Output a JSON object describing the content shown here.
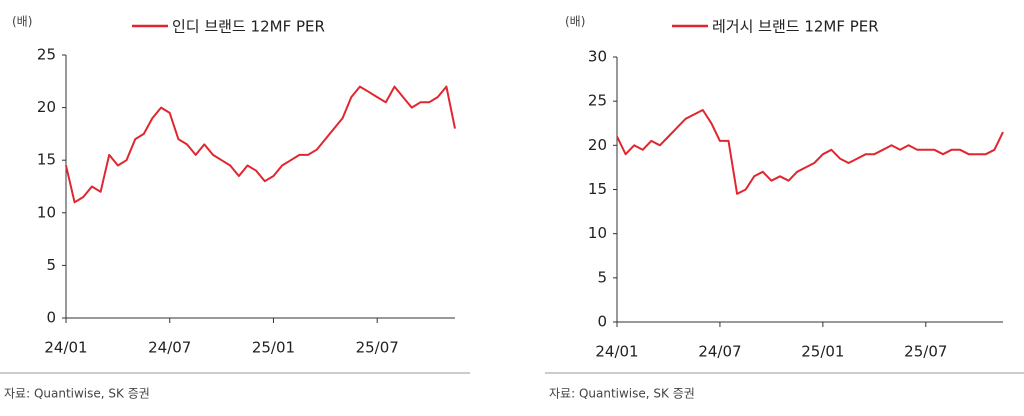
{
  "chart_data": [
    {
      "type": "line",
      "unit": "(배)",
      "source": "자료:  Quantiwise, SK 증권",
      "categories": [
        "24/01",
        null,
        null,
        null,
        null,
        null,
        null,
        null,
        null,
        null,
        null,
        null,
        "24/07",
        null,
        null,
        null,
        null,
        null,
        null,
        null,
        null,
        null,
        null,
        null,
        "25/01",
        null,
        null,
        null,
        null,
        null,
        null,
        null,
        null,
        null,
        null,
        null,
        "25/07",
        null,
        null,
        null,
        null,
        null,
        null,
        null,
        null,
        null
      ],
      "series": [
        {
          "name": "인디 브랜드 12MF PER",
          "color": "#e0262f",
          "values": [
            14.5,
            11,
            11.5,
            12.5,
            12,
            15.5,
            14.5,
            15,
            17,
            17.5,
            19,
            20,
            19.5,
            17,
            16.5,
            15.5,
            16.5,
            15.5,
            15,
            14.5,
            13.5,
            14.5,
            14,
            13,
            13.5,
            14.5,
            15,
            15.5,
            15.5,
            16,
            17,
            18,
            19,
            21,
            22,
            21.5,
            21,
            20.5,
            22,
            21,
            20,
            20.5,
            20.5,
            21,
            22,
            18
          ]
        }
      ],
      "ylim": [
        0,
        25
      ],
      "yticks": [
        0,
        5,
        10,
        15,
        20,
        25
      ]
    },
    {
      "type": "line",
      "unit": "(배)",
      "source": "자료:  Quantiwise, SK 증권",
      "categories": [
        "24/01",
        null,
        null,
        null,
        null,
        null,
        null,
        null,
        null,
        null,
        null,
        null,
        "24/07",
        null,
        null,
        null,
        null,
        null,
        null,
        null,
        null,
        null,
        null,
        null,
        "25/01",
        null,
        null,
        null,
        null,
        null,
        null,
        null,
        null,
        null,
        null,
        null,
        "25/07",
        null,
        null,
        null,
        null,
        null,
        null,
        null,
        null,
        null
      ],
      "series": [
        {
          "name": "레거시 브랜드 12MF PER",
          "color": "#e0262f",
          "values": [
            21,
            19,
            20,
            19.5,
            20.5,
            20,
            21,
            22,
            23,
            23.5,
            24,
            22.5,
            20.5,
            20.5,
            14.5,
            15,
            16.5,
            17,
            16,
            16.5,
            16,
            17,
            17.5,
            18,
            19,
            19.5,
            18.5,
            18,
            18.5,
            19,
            19,
            19.5,
            20,
            19.5,
            20,
            19.5,
            19.5,
            19.5,
            19,
            19.5,
            19.5,
            19,
            19,
            19,
            19.5,
            21.5
          ]
        }
      ],
      "ylim": [
        0,
        30
      ],
      "yticks": [
        0,
        5,
        10,
        15,
        20,
        25,
        30
      ]
    }
  ]
}
